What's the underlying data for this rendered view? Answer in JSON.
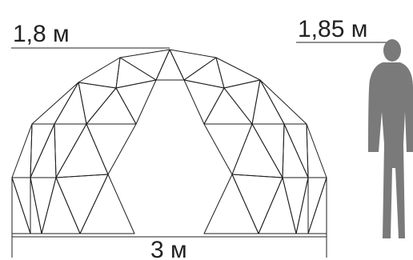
{
  "labels": {
    "height_dome": "1,8 м",
    "height_person": "1,85 м",
    "width_dome": "3 м"
  },
  "colors": {
    "dark": "#2e5fa6",
    "mid": "#6f93c4",
    "light": "#a9c0dd",
    "pale": "#d6e2ef",
    "person": "#7a7a7a",
    "line": "#1e1e1e"
  },
  "icons": {
    "person": "person-silhouette-icon"
  }
}
